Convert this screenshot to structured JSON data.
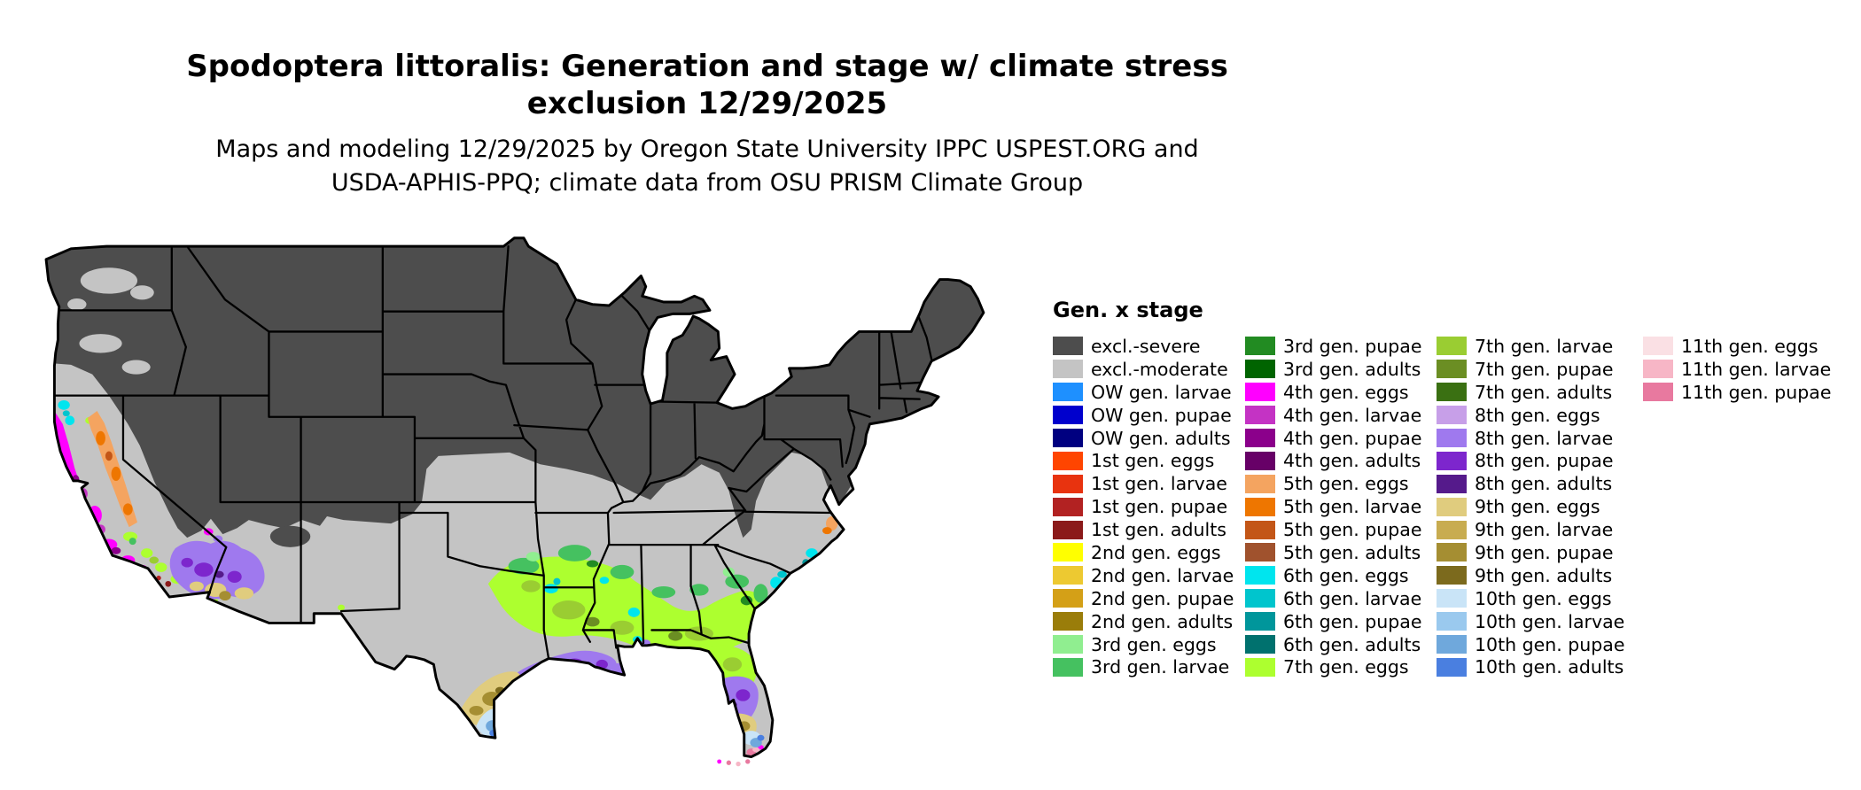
{
  "title": {
    "line1": "Spodoptera littoralis: Generation and stage w/ climate stress",
    "line2": "exclusion 12/29/2025"
  },
  "subtitle": {
    "line1": "Maps and modeling 12/29/2025 by Oregon State University IPPC USPEST.ORG and",
    "line2": "USDA-APHIS-PPQ; climate data from OSU PRISM Climate Group"
  },
  "legend": {
    "title": "Gen. x stage",
    "columns": [
      [
        {
          "label": "excl.-severe",
          "color": "#4D4D4D"
        },
        {
          "label": "excl.-moderate",
          "color": "#C4C4C4"
        },
        {
          "label": "OW gen. larvae",
          "color": "#1E90FF"
        },
        {
          "label": "OW gen. pupae",
          "color": "#0000CD"
        },
        {
          "label": "OW gen. adults",
          "color": "#000080"
        },
        {
          "label": "1st gen. eggs",
          "color": "#FF4500"
        },
        {
          "label": "1st gen. larvae",
          "color": "#E8330F"
        },
        {
          "label": "1st gen. pupae",
          "color": "#B22222"
        },
        {
          "label": "1st gen. adults",
          "color": "#8B1A1A"
        },
        {
          "label": "2nd gen. eggs",
          "color": "#FFFF00"
        },
        {
          "label": "2nd gen. larvae",
          "color": "#EDC931"
        },
        {
          "label": "2nd gen. pupae",
          "color": "#D4A017"
        },
        {
          "label": "2nd gen. adults",
          "color": "#9A7D0A"
        },
        {
          "label": "3rd gen. eggs",
          "color": "#90EE90"
        },
        {
          "label": "3rd gen. larvae",
          "color": "#45C160"
        }
      ],
      [
        {
          "label": "3rd gen. pupae",
          "color": "#228B22"
        },
        {
          "label": "3rd gen. adults",
          "color": "#006400"
        },
        {
          "label": "4th gen. eggs",
          "color": "#FF00FF"
        },
        {
          "label": "4th gen. larvae",
          "color": "#C433C4"
        },
        {
          "label": "4th gen. pupae",
          "color": "#8B008B"
        },
        {
          "label": "4th gen. adults",
          "color": "#670067"
        },
        {
          "label": "5th gen. eggs",
          "color": "#F4A460"
        },
        {
          "label": "5th gen. larvae",
          "color": "#EE7600"
        },
        {
          "label": "5th gen. pupae",
          "color": "#C35617"
        },
        {
          "label": "5th gen. adults",
          "color": "#A0522D"
        },
        {
          "label": "6th gen. eggs",
          "color": "#00E5EE"
        },
        {
          "label": "6th gen. larvae",
          "color": "#00C5CD"
        },
        {
          "label": "6th gen. pupae",
          "color": "#00969B"
        },
        {
          "label": "6th gen. adults",
          "color": "#00716E"
        },
        {
          "label": "7th gen. eggs",
          "color": "#ADFF2F"
        }
      ],
      [
        {
          "label": "7th gen. larvae",
          "color": "#9ACD32"
        },
        {
          "label": "7th gen. pupae",
          "color": "#6B8E23"
        },
        {
          "label": "7th gen. adults",
          "color": "#3A7012"
        },
        {
          "label": "8th gen. eggs",
          "color": "#C79FE8"
        },
        {
          "label": "8th gen. larvae",
          "color": "#9F79EE"
        },
        {
          "label": "8th gen. pupae",
          "color": "#7D26CD"
        },
        {
          "label": "8th gen. adults",
          "color": "#551A8B"
        },
        {
          "label": "9th gen. eggs",
          "color": "#E0CC7E"
        },
        {
          "label": "9th gen. larvae",
          "color": "#C8AC50"
        },
        {
          "label": "9th gen. pupae",
          "color": "#A58E32"
        },
        {
          "label": "9th gen. adults",
          "color": "#7C6A1D"
        },
        {
          "label": "10th gen. eggs",
          "color": "#C9E4F7"
        },
        {
          "label": "10th gen. larvae",
          "color": "#9AC9EE"
        },
        {
          "label": "10th gen. pupae",
          "color": "#6FA8DC"
        },
        {
          "label": "10th gen. adults",
          "color": "#4A7FE0"
        }
      ],
      [
        {
          "label": "11th gen. eggs",
          "color": "#FAE0E4"
        },
        {
          "label": "11th gen. larvae",
          "color": "#F7B6C6"
        },
        {
          "label": "11th gen. pupae",
          "color": "#E8799F"
        }
      ]
    ]
  },
  "map": {
    "region_label": "Contiguous United States choropleth of generation x stage",
    "base_color": "#C4C4C4",
    "severe_color": "#4D4D4D",
    "border_color": "#000000"
  }
}
